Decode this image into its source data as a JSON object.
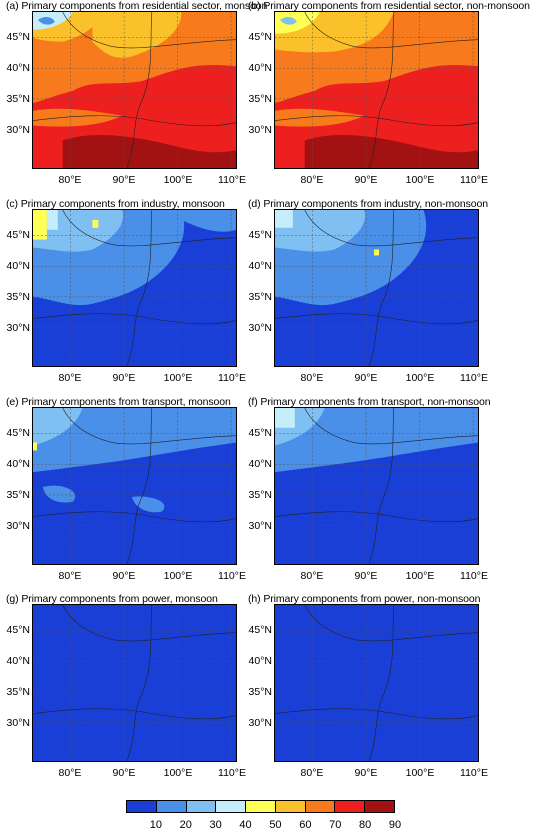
{
  "panels": [
    {
      "title": "(a) Primary components from residential sector, monsoon"
    },
    {
      "title": "(b) Primary components from residential sector, non-monsoon"
    },
    {
      "title": "(c) Primary components from industry, monsoon"
    },
    {
      "title": "(d) Primary components from industry, non-monsoon"
    },
    {
      "title": "(e) Primary components from transport, monsoon"
    },
    {
      "title": "(f) Primary components from transport, non-monsoon"
    },
    {
      "title": "(g) Primary components from power, monsoon"
    },
    {
      "title": "(h) Primary components from power, non-monsoon"
    }
  ],
  "axes": {
    "lat_ticks": [
      "45°N",
      "40°N",
      "35°N",
      "30°N"
    ],
    "lon_ticks": [
      "80°E",
      "90°E",
      "100°E",
      "110°E"
    ]
  },
  "colorbar": {
    "colors": [
      "#1a3fd6",
      "#4a8fe8",
      "#80bff2",
      "#c6eefa",
      "#ffff55",
      "#fbc12a",
      "#f77a1c",
      "#ee1f1f",
      "#a31212"
    ],
    "labels": [
      "10",
      "20",
      "30",
      "40",
      "50",
      "60",
      "70",
      "80",
      "90"
    ]
  }
}
